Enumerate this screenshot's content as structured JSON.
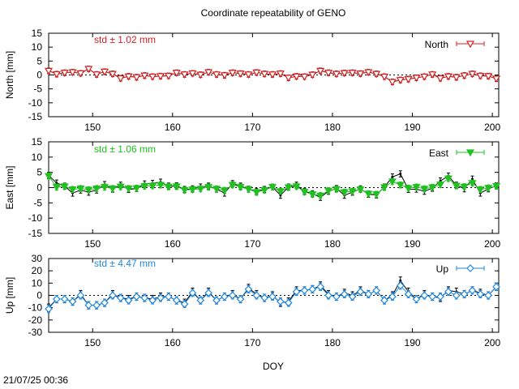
{
  "chart_data": {
    "type": "line",
    "title": "Coordinate repeatability of GENO",
    "xlabel": "DOY",
    "xlim": [
      144.5,
      200.8
    ],
    "xticks": [
      150,
      160,
      170,
      180,
      190,
      200
    ],
    "x": [
      144.5,
      145.5,
      146.5,
      147.5,
      148.5,
      149.5,
      150.5,
      151.5,
      152.5,
      153.5,
      154.5,
      155.5,
      156.5,
      157.5,
      158.5,
      159.5,
      160.5,
      161.5,
      162.5,
      163.5,
      164.5,
      165.5,
      166.5,
      167.5,
      168.5,
      169.5,
      170.5,
      171.5,
      172.5,
      173.5,
      174.5,
      175.5,
      176.5,
      177.5,
      178.5,
      179.5,
      180.5,
      181.5,
      182.5,
      183.5,
      184.5,
      185.5,
      186.5,
      187.5,
      188.5,
      189.5,
      190.5,
      191.5,
      192.5,
      193.5,
      194.5,
      195.5,
      196.5,
      197.5,
      198.5,
      199.5,
      200.5
    ],
    "panels": [
      {
        "name": "North",
        "ylabel": "North [mm]",
        "ylim": [
          -15,
          15
        ],
        "yticks": [
          15,
          10,
          5,
          0,
          -5,
          -10,
          -15
        ],
        "std_label": "std ± 1.02 mm",
        "color": "#d42020",
        "marker": "triangle-down-open",
        "raw": [
          1.5,
          0.3,
          0.8,
          1.0,
          0.6,
          2.2,
          0.2,
          1.2,
          0.4,
          -1.2,
          -0.5,
          -0.8,
          -0.2,
          -0.6,
          -0.4,
          -0.3,
          0.8,
          0.2,
          0.6,
          0.1,
          1.0,
          0.2,
          -0.1,
          0.8,
          0.5,
          0.2,
          0.9,
          0.4,
          0.2,
          0.5,
          -1.0,
          -0.5,
          -0.6,
          0.1,
          1.5,
          0.8,
          0.4,
          0.7,
          0.8,
          0.5,
          1.0,
          0.4,
          -0.6,
          -2.5,
          -1.8,
          -1.5,
          -1.0,
          -0.6,
          0.2,
          -1.2,
          -0.5,
          -0.8,
          -0.2,
          0.4,
          -0.3,
          -0.4,
          -1.3
        ],
        "values": [
          1.5,
          0.3,
          0.8,
          1.0,
          0.6,
          2.2,
          0.2,
          1.2,
          0.4,
          -1.2,
          -0.5,
          -0.8,
          -0.2,
          -0.6,
          -0.4,
          -0.3,
          0.8,
          0.2,
          0.6,
          0.1,
          1.0,
          0.2,
          -0.1,
          0.8,
          0.5,
          0.2,
          0.9,
          0.4,
          0.2,
          0.5,
          -1.0,
          -0.5,
          -0.6,
          0.1,
          1.5,
          0.8,
          0.4,
          0.7,
          0.8,
          0.5,
          1.0,
          0.4,
          -0.6,
          -2.5,
          -1.8,
          -1.5,
          -1.0,
          -0.6,
          0.2,
          -1.2,
          -0.5,
          -0.8,
          -0.2,
          0.4,
          -0.3,
          -0.4,
          -1.3
        ],
        "error": 1.0
      },
      {
        "name": "East",
        "ylabel": "East [mm]",
        "ylim": [
          -15,
          15
        ],
        "yticks": [
          15,
          10,
          5,
          0,
          -5,
          -10,
          -15
        ],
        "std_label": "std ± 1.06 mm",
        "color": "#20c020",
        "marker": "triangle-down-filled",
        "raw": [
          4.0,
          1.5,
          0.5,
          -1.8,
          -0.8,
          -1.5,
          -0.8,
          1.0,
          -0.5,
          0.8,
          -0.6,
          -0.3,
          1.2,
          1.4,
          1.8,
          0.5,
          0.6,
          -0.6,
          -0.4,
          0.2,
          0.5,
          -0.5,
          -1.8,
          1.3,
          0.5,
          -0.5,
          -1.2,
          -0.6,
          0.2,
          -2.5,
          0.2,
          0.8,
          -1.2,
          -2.0,
          -3.2,
          -1.2,
          -0.3,
          -2.5,
          -1.5,
          -0.4,
          -2.2,
          -2.4,
          0.2,
          3.5,
          4.5,
          -0.6,
          -0.5,
          -1.2,
          -0.2,
          2.2,
          3.8,
          0.8,
          -0.4,
          2.8,
          -1.8,
          -0.4,
          0.6
        ],
        "values": [
          3.8,
          0.2,
          0.4,
          -0.6,
          -0.3,
          -0.7,
          -0.3,
          0.2,
          -0.3,
          0.3,
          -0.3,
          -0.2,
          0.5,
          0.6,
          0.9,
          0.3,
          0.4,
          -0.8,
          -0.6,
          -0.4,
          0.2,
          -0.4,
          -0.9,
          0.9,
          0.2,
          -0.5,
          -1.5,
          -0.8,
          0.2,
          -1.2,
          0.1,
          0.4,
          -1.4,
          -2.2,
          -2.6,
          -1.0,
          -0.5,
          -1.5,
          -1.2,
          -0.6,
          -2.0,
          -2.2,
          0.1,
          2.0,
          0.9,
          -0.2,
          0.2,
          -0.4,
          0.1,
          1.0,
          3.0,
          0.6,
          0.3,
          1.5,
          -0.6,
          -0.1,
          0.5
        ],
        "error": 1.0
      },
      {
        "name": "Up",
        "ylabel": "Up [mm]",
        "ylim": [
          -30,
          30
        ],
        "yticks": [
          30,
          20,
          10,
          0,
          -10,
          -20,
          -30
        ],
        "std_label": "std ± 4.47 mm",
        "color": "#2088e0",
        "marker": "diamond-open",
        "raw": [
          -10,
          -3,
          -3,
          -5,
          1,
          -8,
          -8,
          -6,
          1,
          -2,
          -3,
          -1,
          -2,
          -3,
          -1,
          -1,
          -4,
          -6,
          3,
          -4,
          3,
          -4,
          -1,
          1,
          -3,
          6,
          1,
          -2,
          0,
          -6,
          -5,
          4,
          4,
          5,
          8,
          1,
          -1,
          2,
          0,
          4,
          1,
          4,
          -4,
          0,
          12,
          3,
          -3,
          1,
          -1,
          -2,
          4,
          3,
          1,
          4,
          2,
          0,
          7
        ],
        "values": [
          -11,
          -3,
          -3,
          -5,
          0,
          -8,
          -8,
          -6,
          0,
          -2,
          -4,
          -1,
          -2,
          -4,
          -2,
          -1,
          -4,
          -7,
          2,
          -4,
          2,
          -4,
          -1,
          0,
          -3,
          5,
          0,
          -2,
          -1,
          -5,
          -6,
          3,
          4,
          5,
          7,
          0,
          -1,
          1,
          -1,
          3,
          1,
          4,
          -4,
          -1,
          8,
          1,
          -3,
          0,
          -1,
          -1,
          3,
          0,
          1,
          4,
          1,
          0,
          7
        ],
        "error": 3.0
      }
    ]
  },
  "footer": {
    "timestamp": "21/07/25 00:36"
  }
}
